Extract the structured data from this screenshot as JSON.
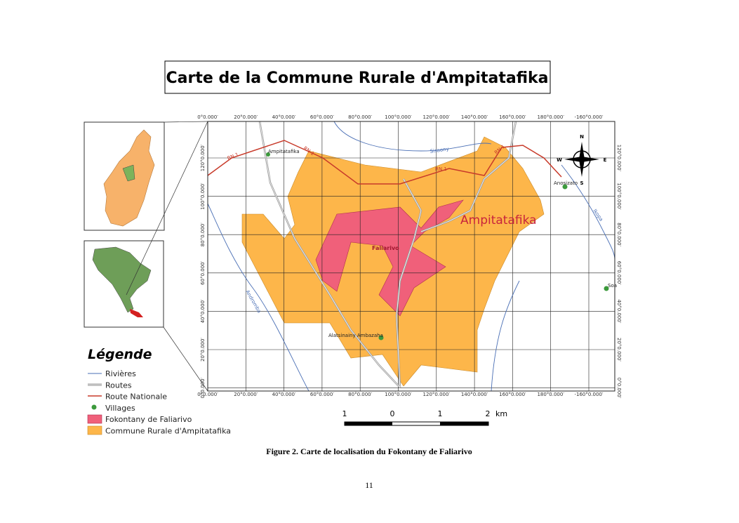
{
  "title": "Carte de la Commune Rurale d'Ampitatafika",
  "map": {
    "x_labels": [
      "0°0.000′",
      "20°0.000′",
      "40°0.000′",
      "60°0.000′",
      "80°0.000′",
      "100°0.000′",
      "120°0.000′",
      "140°0.000′",
      "160°0.000′",
      "180°0.000′",
      "-160°0.000′"
    ],
    "y_labels": [
      "120°0.000′",
      "100°0.000′",
      "80°0.000′",
      "60°0.000′",
      "40°0.000′",
      "20°0.000′",
      "0°0.000′"
    ],
    "places": {
      "ampitatafika_village": "Ampitatafika",
      "commune": "Ampitatafika",
      "faliarivo": "Faliarivo",
      "alatsinainy": "Alatsinainy Ambazaha",
      "anosizato": "Anosizato",
      "soa": "Soa"
    },
    "roads": [
      "RN 1",
      "RN 1",
      "RN 1",
      "RN 1"
    ],
    "rivers": {
      "sisaony": "Sisaony",
      "andromba": "Andromba",
      "ikopa": "Ikopa"
    },
    "compass": {
      "n": "N",
      "s": "S",
      "e": "E",
      "w": "W"
    }
  },
  "legend": {
    "title": "Légende",
    "items": [
      "Rivières",
      "Routes",
      "Route Nationale",
      "Villages",
      "Fokontany de Faliarivo",
      "Commune Rurale d'Ampitatafika"
    ]
  },
  "scale": {
    "labels": [
      "1",
      "0",
      "1",
      "2"
    ],
    "unit": "km"
  },
  "caption": "Figure 2. Carte de localisation du Fokontany de Faliarivo",
  "page_number": "11"
}
